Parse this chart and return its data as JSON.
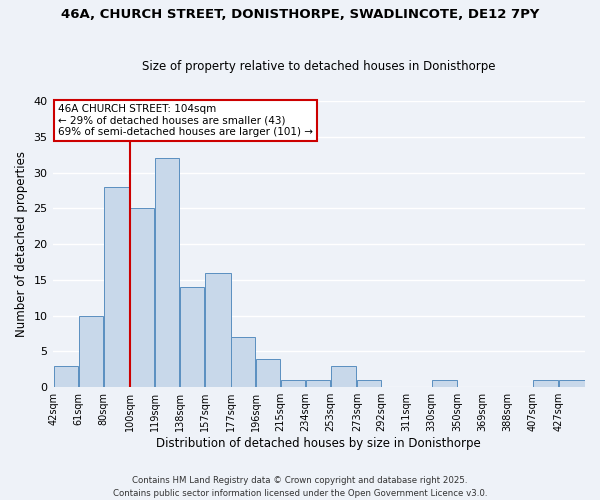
{
  "title": "46A, CHURCH STREET, DONISTHORPE, SWADLINCOTE, DE12 7PY",
  "subtitle": "Size of property relative to detached houses in Donisthorpe",
  "xlabel": "Distribution of detached houses by size in Donisthorpe",
  "ylabel": "Number of detached properties",
  "bin_labels": [
    "42sqm",
    "61sqm",
    "80sqm",
    "100sqm",
    "119sqm",
    "138sqm",
    "157sqm",
    "177sqm",
    "196sqm",
    "215sqm",
    "234sqm",
    "253sqm",
    "273sqm",
    "292sqm",
    "311sqm",
    "330sqm",
    "350sqm",
    "369sqm",
    "388sqm",
    "407sqm",
    "427sqm"
  ],
  "bin_edges": [
    42,
    61,
    80,
    100,
    119,
    138,
    157,
    177,
    196,
    215,
    234,
    253,
    273,
    292,
    311,
    330,
    350,
    369,
    388,
    407,
    427
  ],
  "bar_heights": [
    3,
    10,
    28,
    25,
    32,
    14,
    16,
    7,
    4,
    1,
    1,
    3,
    1,
    0,
    0,
    1,
    0,
    0,
    0,
    1,
    1
  ],
  "bar_color": "#c8d8ea",
  "bar_edge_color": "#5a8fc0",
  "vline_x": 100,
  "vline_color": "#cc0000",
  "ylim": [
    0,
    40
  ],
  "yticks": [
    0,
    5,
    10,
    15,
    20,
    25,
    30,
    35,
    40
  ],
  "annotation_line1": "46A CHURCH STREET: 104sqm",
  "annotation_line2": "← 29% of detached houses are smaller (43)",
  "annotation_line3": "69% of semi-detached houses are larger (101) →",
  "annotation_box_edge_color": "#cc0000",
  "annotation_box_face_color": "white",
  "bg_color": "#eef2f8",
  "grid_color": "white",
  "footer_line1": "Contains HM Land Registry data © Crown copyright and database right 2025.",
  "footer_line2": "Contains public sector information licensed under the Open Government Licence v3.0."
}
